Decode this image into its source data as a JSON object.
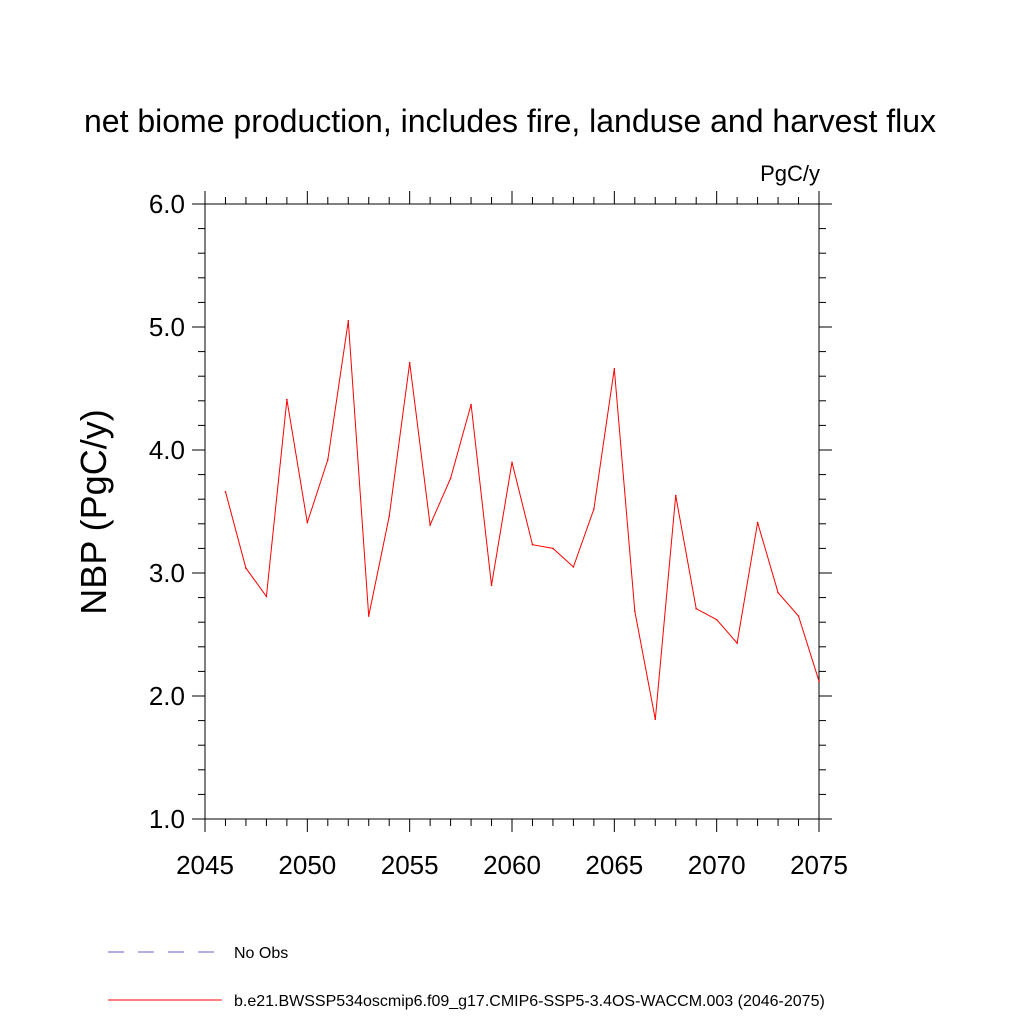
{
  "chart_data": {
    "type": "line",
    "title": "net biome production, includes fire, landuse and harvest flux",
    "units_label": "PgC/y",
    "xlabel": "",
    "ylabel": "NBP  (PgC/y)",
    "xlim": [
      2045,
      2075
    ],
    "ylim": [
      1.0,
      6.0
    ],
    "x_ticks": [
      2045,
      2050,
      2055,
      2060,
      2065,
      2070,
      2075
    ],
    "y_ticks": [
      "1.0",
      "2.0",
      "3.0",
      "4.0",
      "5.0",
      "6.0"
    ],
    "grid": false,
    "legend_position": "bottom-left",
    "series": [
      {
        "name": "b.e21.BWSSP534oscmip6.f09_g17.CMIP6-SSP5-3.4OS-WACCM.003 (2046-2075)",
        "color": "#ff0000",
        "style": "solid",
        "x": [
          2046,
          2047,
          2048,
          2049,
          2050,
          2051,
          2052,
          2053,
          2054,
          2055,
          2056,
          2057,
          2058,
          2059,
          2060,
          2061,
          2062,
          2063,
          2064,
          2065,
          2066,
          2067,
          2068,
          2069,
          2070,
          2071,
          2072,
          2073,
          2074,
          2075
        ],
        "values": [
          3.66,
          3.04,
          2.81,
          4.41,
          3.41,
          3.92,
          5.05,
          2.65,
          3.46,
          4.71,
          3.39,
          3.77,
          4.37,
          2.9,
          3.9,
          3.23,
          3.2,
          3.05,
          3.52,
          4.66,
          2.69,
          1.81,
          3.63,
          2.71,
          2.62,
          2.43,
          3.41,
          2.84,
          2.65,
          2.12
        ]
      }
    ],
    "legend": [
      {
        "label": "No Obs",
        "color": "#6a5acd",
        "style": "dashed"
      },
      {
        "label": "b.e21.BWSSP534oscmip6.f09_g17.CMIP6-SSP5-3.4OS-WACCM.003 (2046-2075)",
        "color": "#ff0000",
        "style": "solid"
      }
    ]
  }
}
